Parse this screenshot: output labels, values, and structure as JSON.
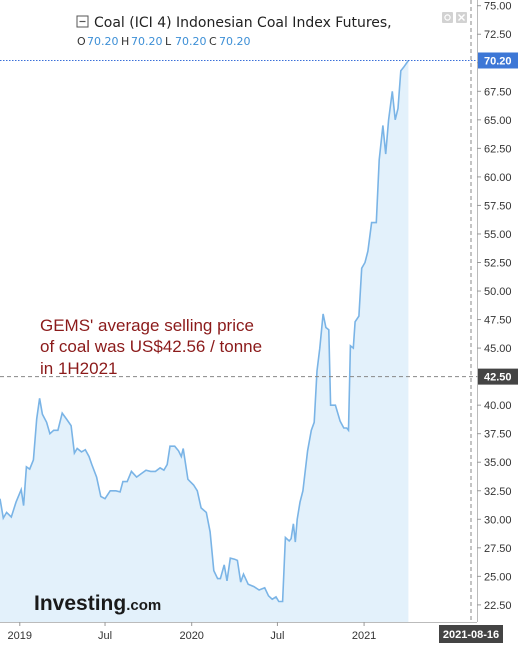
{
  "chart_data": {
    "type": "area",
    "title": "Coal (ICI 4) Indonesian Coal Index Futures,",
    "ohlc": [
      {
        "key": "O",
        "value": "70.20"
      },
      {
        "key": "H",
        "value": "70.20"
      },
      {
        "key": "L",
        "value": "70.20"
      },
      {
        "key": "C",
        "value": "70.20"
      }
    ],
    "ylim": [
      21.0,
      75.5
    ],
    "y_ticks": [
      22.5,
      25.0,
      27.5,
      30.0,
      32.5,
      35.0,
      37.5,
      40.0,
      42.5,
      45.0,
      47.5,
      50.0,
      52.5,
      55.0,
      57.5,
      60.0,
      62.5,
      65.0,
      67.5,
      70.0,
      72.5,
      75.0
    ],
    "y_tick_labels": [
      "22.50",
      "25.00",
      "27.50",
      "30.00",
      "32.50",
      "35.00",
      "37.50",
      "40.00",
      "42.50",
      "45.00",
      "47.50",
      "50.00",
      "52.50",
      "55.00",
      "57.50",
      "60.00",
      "62.50",
      "65.00",
      "67.50",
      "70.00",
      "72.50",
      "75.00"
    ],
    "x_range": [
      "2018-11-20",
      "2021-08-16"
    ],
    "x_ticks": [
      {
        "date": "2019-01-01",
        "label": "2019"
      },
      {
        "date": "2019-07-01",
        "label": "Jul"
      },
      {
        "date": "2020-01-01",
        "label": "2020"
      },
      {
        "date": "2020-07-01",
        "label": "Jul"
      },
      {
        "date": "2021-01-01",
        "label": "2021"
      }
    ],
    "x_current_label": "2021-08-16",
    "current_price": {
      "value": 70.2,
      "label": "70.20"
    },
    "reference_line": {
      "value": 42.5,
      "label": "42.50"
    },
    "annotation": [
      "GEMS' average selling price",
      "of coal was US$42.56 / tonne",
      "in 1H2021"
    ],
    "series": [
      {
        "color": "#7ab4e6",
        "fill": "#e3f1fb",
        "points": [
          [
            "2018-11-20",
            31.8
          ],
          [
            "2018-11-27",
            30.1
          ],
          [
            "2018-12-04",
            30.6
          ],
          [
            "2018-12-14",
            30.2
          ],
          [
            "2018-12-24",
            31.5
          ],
          [
            "2019-01-04",
            32.6
          ],
          [
            "2019-01-09",
            31.2
          ],
          [
            "2019-01-15",
            34.6
          ],
          [
            "2019-01-22",
            34.4
          ],
          [
            "2019-01-30",
            35.2
          ],
          [
            "2019-02-06",
            38.8
          ],
          [
            "2019-02-12",
            40.6
          ],
          [
            "2019-02-18",
            39.2
          ],
          [
            "2019-02-27",
            38.5
          ],
          [
            "2019-03-06",
            37.5
          ],
          [
            "2019-03-14",
            37.8
          ],
          [
            "2019-03-23",
            37.8
          ],
          [
            "2019-04-01",
            39.3
          ],
          [
            "2019-04-10",
            38.8
          ],
          [
            "2019-04-20",
            38.2
          ],
          [
            "2019-04-27",
            35.8
          ],
          [
            "2019-05-03",
            36.2
          ],
          [
            "2019-05-12",
            35.9
          ],
          [
            "2019-05-20",
            36.1
          ],
          [
            "2019-05-28",
            35.5
          ],
          [
            "2019-06-03",
            34.8
          ],
          [
            "2019-06-13",
            33.7
          ],
          [
            "2019-06-22",
            32.0
          ],
          [
            "2019-07-01",
            31.8
          ],
          [
            "2019-07-12",
            32.5
          ],
          [
            "2019-07-24",
            32.5
          ],
          [
            "2019-08-02",
            32.4
          ],
          [
            "2019-08-08",
            33.3
          ],
          [
            "2019-08-17",
            33.3
          ],
          [
            "2019-08-26",
            34.2
          ],
          [
            "2019-09-06",
            33.7
          ],
          [
            "2019-09-16",
            34.0
          ],
          [
            "2019-09-26",
            34.3
          ],
          [
            "2019-10-06",
            34.2
          ],
          [
            "2019-10-16",
            34.2
          ],
          [
            "2019-10-26",
            34.5
          ],
          [
            "2019-11-03",
            34.3
          ],
          [
            "2019-11-10",
            34.8
          ],
          [
            "2019-11-16",
            36.4
          ],
          [
            "2019-11-26",
            36.4
          ],
          [
            "2019-12-04",
            36.0
          ],
          [
            "2019-12-10",
            35.5
          ],
          [
            "2019-12-14",
            36.2
          ],
          [
            "2019-12-24",
            33.5
          ],
          [
            "2020-01-05",
            33.0
          ],
          [
            "2020-01-13",
            32.5
          ],
          [
            "2020-01-21",
            31.0
          ],
          [
            "2020-02-01",
            30.6
          ],
          [
            "2020-02-09",
            28.9
          ],
          [
            "2020-02-17",
            25.5
          ],
          [
            "2020-02-25",
            24.8
          ],
          [
            "2020-03-02",
            24.8
          ],
          [
            "2020-03-10",
            26.0
          ],
          [
            "2020-03-16",
            24.6
          ],
          [
            "2020-03-23",
            26.6
          ],
          [
            "2020-04-01",
            26.5
          ],
          [
            "2020-04-07",
            26.4
          ],
          [
            "2020-04-14",
            24.5
          ],
          [
            "2020-04-20",
            25.2
          ],
          [
            "2020-04-30",
            24.3
          ],
          [
            "2020-05-12",
            24.1
          ],
          [
            "2020-05-23",
            23.8
          ],
          [
            "2020-06-04",
            24.0
          ],
          [
            "2020-06-12",
            23.3
          ],
          [
            "2020-06-20",
            23.0
          ],
          [
            "2020-06-28",
            23.2
          ],
          [
            "2020-07-04",
            22.8
          ],
          [
            "2020-07-12",
            22.8
          ],
          [
            "2020-07-18",
            28.4
          ],
          [
            "2020-07-26",
            28.1
          ],
          [
            "2020-07-30",
            28.3
          ],
          [
            "2020-08-04",
            29.6
          ],
          [
            "2020-08-08",
            28.0
          ],
          [
            "2020-08-12",
            30.0
          ],
          [
            "2020-08-18",
            31.5
          ],
          [
            "2020-08-24",
            32.5
          ],
          [
            "2020-09-03",
            36.0
          ],
          [
            "2020-09-11",
            37.8
          ],
          [
            "2020-09-17",
            38.5
          ],
          [
            "2020-09-23",
            43.0
          ],
          [
            "2020-09-29",
            45.0
          ],
          [
            "2020-10-06",
            48.0
          ],
          [
            "2020-10-12",
            46.8
          ],
          [
            "2020-10-18",
            46.6
          ],
          [
            "2020-10-22",
            40.0
          ],
          [
            "2020-11-01",
            40.0
          ],
          [
            "2020-11-11",
            38.6
          ],
          [
            "2020-11-19",
            38.0
          ],
          [
            "2020-11-25",
            38.0
          ],
          [
            "2020-11-29",
            37.8
          ],
          [
            "2020-12-03",
            45.2
          ],
          [
            "2020-12-09",
            45.0
          ],
          [
            "2020-12-13",
            47.3
          ],
          [
            "2020-12-21",
            47.8
          ],
          [
            "2020-12-27",
            52.0
          ],
          [
            "2021-01-03",
            52.5
          ],
          [
            "2021-01-09",
            53.5
          ],
          [
            "2021-01-17",
            56.0
          ],
          [
            "2021-01-27",
            56.0
          ],
          [
            "2021-02-02",
            61.5
          ],
          [
            "2021-02-10",
            64.5
          ],
          [
            "2021-02-16",
            62.0
          ],
          [
            "2021-02-22",
            65.0
          ],
          [
            "2021-03-02",
            67.5
          ],
          [
            "2021-03-08",
            65.0
          ],
          [
            "2021-03-14",
            66.0
          ],
          [
            "2021-03-20",
            69.3
          ],
          [
            "2021-03-26",
            69.6
          ],
          [
            "2021-04-05",
            70.2
          ]
        ]
      }
    ]
  }
}
